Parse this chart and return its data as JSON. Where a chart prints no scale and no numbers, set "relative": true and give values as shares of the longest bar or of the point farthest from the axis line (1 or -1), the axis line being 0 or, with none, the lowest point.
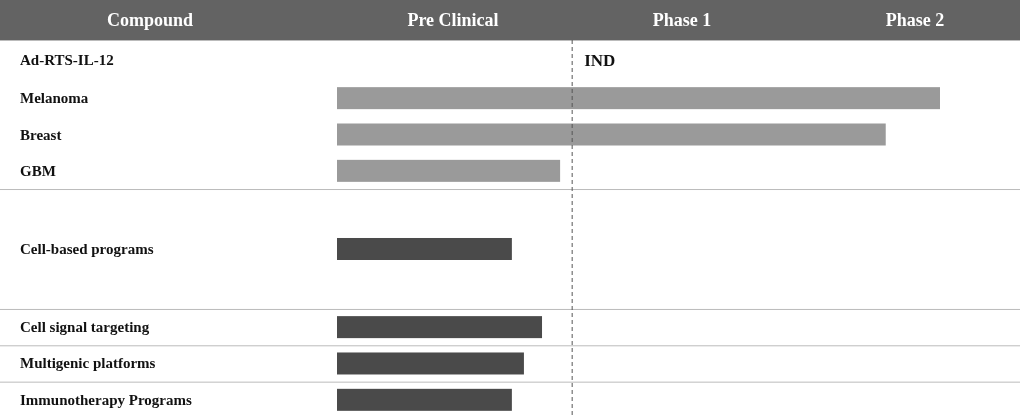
{
  "chart_data": {
    "type": "bar",
    "orientation": "horizontal",
    "relative": true,
    "ylabel": "Compound",
    "categories": [
      "Ad-RTS-IL-12",
      "Melanoma",
      "Breast",
      "GBM",
      "Cell-based programs",
      "Cell signal targeting",
      "Multigenic platforms",
      "Immunotherapy Programs"
    ],
    "values": [
      null,
      1,
      0.91,
      0.37,
      0.29,
      0.34,
      0.31,
      0.29
    ],
    "colors": [
      "#9a9a9a",
      "#9a9a9a",
      "#9a9a9a",
      "#9a9a9a",
      "#4a4a4a",
      "#4a4a4a",
      "#4a4a4a",
      "#4a4a4a"
    ],
    "annotations": [
      "Pre Clinical",
      "Phase 1",
      "Phase 2"
    ],
    "ref_lines": [
      {
        "axis": "x",
        "value": 0.39,
        "label": "IND",
        "color": "#555555",
        "line_style": "dashed"
      }
    ]
  }
}
